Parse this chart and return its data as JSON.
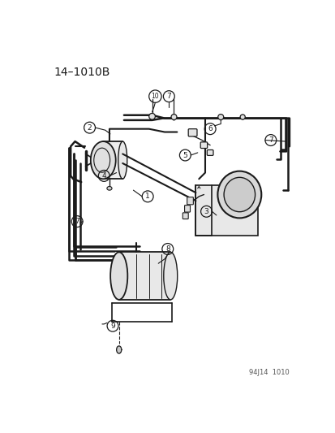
{
  "title": "14–1010B",
  "footer": "94J14  1010",
  "bg": "#ffffff",
  "lc": "#1a1a1a",
  "fig_w": 4.14,
  "fig_h": 5.33,
  "dpi": 100
}
